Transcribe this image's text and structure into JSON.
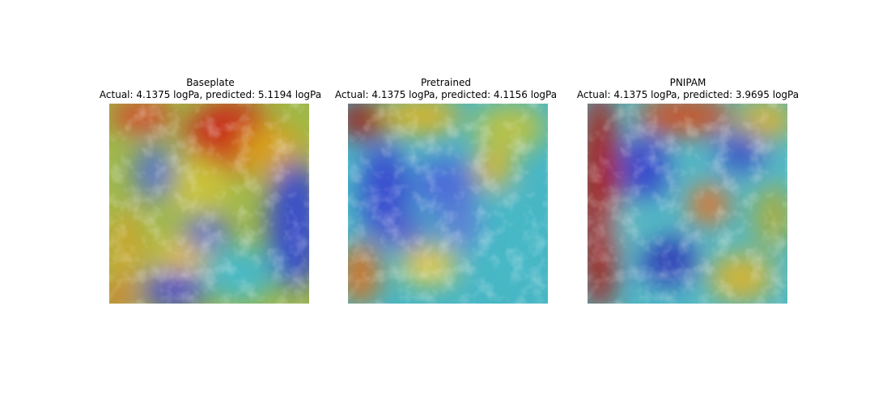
{
  "panels": [
    {
      "title": "Baseplate",
      "subtitle": "Actual: 4.1375 logPa, predicted: 5.1194 logPa"
    },
    {
      "title": "Pretrained",
      "subtitle": "Actual: 4.1375 logPa, predicted: 4.1156 logPa"
    },
    {
      "title": "PNIPAM",
      "subtitle": "Actual: 4.1375 logPa, predicted: 3.9695 logPa"
    }
  ]
}
